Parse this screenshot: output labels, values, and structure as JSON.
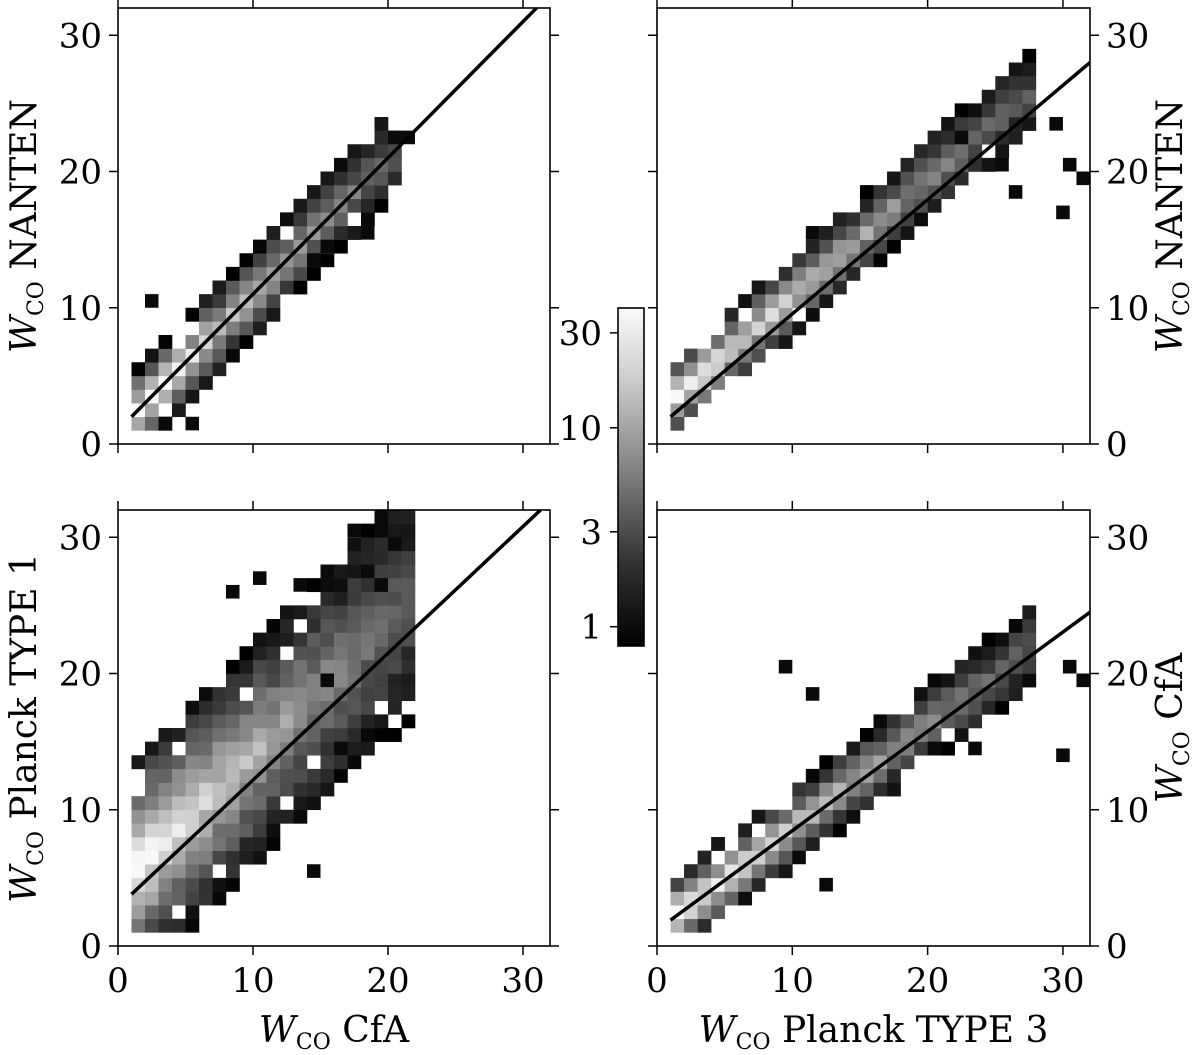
{
  "chart_data": [
    {
      "type": "heatmap",
      "panel": "top-left",
      "xlabel": "",
      "ylabel_main": "W",
      "ylabel_sub": "CO",
      "ylabel_rest": " NANTEN",
      "xlim": [
        0,
        32
      ],
      "ylim": [
        0,
        32
      ],
      "xticks": [
        "0",
        "10",
        "20",
        "30"
      ],
      "yticks": [
        "0",
        "10",
        "20",
        "30"
      ],
      "show_xticklabels": false,
      "show_yticklabels": true,
      "ytick_side": "left",
      "fit_line": [
        [
          1,
          2
        ],
        [
          31,
          32
        ]
      ],
      "band": {
        "slope": 1.0,
        "intercept": 1.0,
        "width": 3.2,
        "x_start": 1,
        "x_end": 21
      },
      "outliers": [
        [
          2,
          10
        ],
        [
          3,
          1
        ],
        [
          5,
          1
        ],
        [
          14,
          13
        ],
        [
          15,
          14
        ],
        [
          18,
          15
        ],
        [
          20,
          22
        ],
        [
          21,
          22
        ]
      ]
    },
    {
      "type": "heatmap",
      "panel": "top-right",
      "xlabel": "",
      "ylabel_main": "W",
      "ylabel_sub": "CO",
      "ylabel_rest": " NANTEN",
      "xlim": [
        0,
        32
      ],
      "ylim": [
        0,
        32
      ],
      "xticks": [
        "0",
        "10",
        "20",
        "30"
      ],
      "yticks": [
        "0",
        "10",
        "20",
        "30"
      ],
      "show_xticklabels": false,
      "show_yticklabels": true,
      "ytick_side": "right",
      "fit_line": [
        [
          1,
          2
        ],
        [
          32,
          28
        ]
      ],
      "band": {
        "slope": 0.86,
        "intercept": 2.2,
        "width": 3.0,
        "x_start": 1,
        "x_end": 28
      },
      "outliers": [
        [
          11,
          15
        ],
        [
          22,
          22
        ],
        [
          25,
          20
        ],
        [
          26,
          18
        ],
        [
          29,
          23
        ],
        [
          30,
          20
        ],
        [
          29.5,
          16.5
        ],
        [
          31,
          19
        ]
      ]
    },
    {
      "type": "heatmap",
      "panel": "bottom-left",
      "xlabel_main": "W",
      "xlabel_sub": "CO",
      "xlabel_rest": " CfA",
      "ylabel_main": "W",
      "ylabel_sub": "CO",
      "ylabel_rest": " Planck TYPE 1",
      "xlim": [
        0,
        32
      ],
      "ylim": [
        0,
        32
      ],
      "xticks": [
        "0",
        "10",
        "20",
        "30"
      ],
      "yticks": [
        "0",
        "10",
        "20",
        "30"
      ],
      "show_xticklabels": true,
      "show_yticklabels": true,
      "ytick_side": "left",
      "fit_line": [
        [
          1,
          3.8
        ],
        [
          31.3,
          32
        ]
      ],
      "band": {
        "slope": 0.95,
        "intercept": 4.5,
        "width": 8.5,
        "x_start": 1,
        "x_end": 22
      },
      "outliers": [
        [
          8,
          25.5
        ],
        [
          10,
          26.5
        ],
        [
          13,
          26
        ],
        [
          15,
          27
        ],
        [
          17,
          30
        ],
        [
          19,
          30
        ],
        [
          20,
          29
        ],
        [
          18,
          27
        ],
        [
          19,
          26
        ],
        [
          14,
          5
        ],
        [
          16,
          14
        ],
        [
          15,
          19
        ]
      ]
    },
    {
      "type": "heatmap",
      "panel": "bottom-right",
      "xlabel_main": "W",
      "xlabel_sub": "CO",
      "xlabel_rest": " Planck TYPE 3",
      "ylabel_main": "W",
      "ylabel_sub": "CO",
      "ylabel_rest": " CfA",
      "xlim": [
        0,
        32
      ],
      "ylim": [
        0,
        32
      ],
      "xticks": [
        "0",
        "10",
        "20",
        "30"
      ],
      "yticks": [
        "0",
        "10",
        "20",
        "30"
      ],
      "show_xticklabels": true,
      "show_yticklabels": true,
      "ytick_side": "right",
      "fit_line": [
        [
          1,
          1.9
        ],
        [
          32,
          24.5
        ]
      ],
      "band": {
        "slope": 0.75,
        "intercept": 1.2,
        "width": 3.0,
        "x_start": 1,
        "x_end": 28
      },
      "outliers": [
        [
          9,
          20
        ],
        [
          11,
          18
        ],
        [
          20,
          14
        ],
        [
          23,
          14
        ],
        [
          29.5,
          13.5
        ],
        [
          30,
          20
        ],
        [
          31,
          19
        ],
        [
          12,
          4
        ],
        [
          10,
          6
        ]
      ]
    }
  ],
  "colorbar": {
    "scale": "log",
    "range": [
      0.8,
      40
    ],
    "ticks": [
      "30",
      "10",
      "3",
      "1"
    ],
    "tick_values": [
      30,
      10,
      3,
      1
    ],
    "colormap": "gray"
  }
}
